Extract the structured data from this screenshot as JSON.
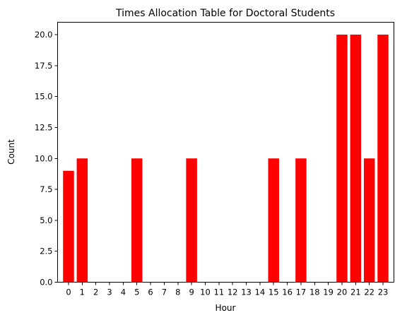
{
  "chart_data": {
    "type": "bar",
    "title": "Times Allocation Table for Doctoral Students",
    "xlabel": "Hour",
    "ylabel": "Count",
    "categories": [
      "0",
      "1",
      "2",
      "3",
      "4",
      "5",
      "6",
      "7",
      "8",
      "9",
      "10",
      "11",
      "12",
      "13",
      "14",
      "15",
      "16",
      "17",
      "18",
      "19",
      "20",
      "21",
      "22",
      "23"
    ],
    "values": [
      9,
      10,
      0,
      0,
      0,
      10,
      0,
      0,
      0,
      10,
      0,
      0,
      0,
      0,
      0,
      10,
      0,
      10,
      0,
      0,
      20,
      20,
      10,
      20
    ],
    "ylim": [
      0,
      21
    ],
    "yticks": [
      0.0,
      2.5,
      5.0,
      7.5,
      10.0,
      12.5,
      15.0,
      17.5,
      20.0
    ],
    "ytick_labels": [
      "0.0",
      "2.5",
      "5.0",
      "7.5",
      "10.0",
      "12.5",
      "15.0",
      "17.5",
      "20.0"
    ],
    "bar_color": "#ff0000",
    "grid": false,
    "legend": "none"
  }
}
